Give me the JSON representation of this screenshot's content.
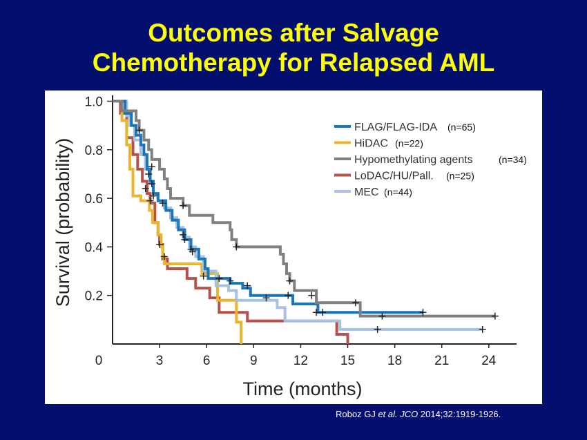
{
  "title_line1": "Outcomes after Salvage",
  "title_line2": "Chemotherapy for Relapsed AML",
  "citation": {
    "authors": "Roboz GJ",
    "etal": "et al.",
    "journal": "JCO",
    "rest": "2014;32:1919-1926."
  },
  "chart_data": {
    "type": "line",
    "subtype": "kaplan-meier step",
    "xlabel": "Time (months)",
    "ylabel": "Survival (probability)",
    "xlim": [
      0,
      25
    ],
    "ylim": [
      0,
      1.0
    ],
    "xticks": [
      "0",
      "3",
      "6",
      "9",
      "12",
      "15",
      "18",
      "21",
      "24"
    ],
    "xtick_values": [
      0,
      3,
      6,
      9,
      12,
      15,
      18,
      21,
      24
    ],
    "yticks": [
      "0.2",
      "0.4",
      "0.6",
      "0.8",
      "1.0"
    ],
    "ytick_values": [
      0.2,
      0.4,
      0.6,
      0.8,
      1.0
    ],
    "legend_position": "top-right",
    "series": [
      {
        "name": "FLAG/FLAG-IDA",
        "n": "(n=65)",
        "color": "#1b75b9",
        "points": [
          [
            0,
            1
          ],
          [
            0.8,
            0.95
          ],
          [
            1.2,
            0.9
          ],
          [
            1.5,
            0.86
          ],
          [
            1.8,
            0.82
          ],
          [
            2.0,
            0.78
          ],
          [
            2.2,
            0.72
          ],
          [
            2.4,
            0.67
          ],
          [
            2.6,
            0.62
          ],
          [
            2.9,
            0.59
          ],
          [
            3.4,
            0.55
          ],
          [
            3.8,
            0.51
          ],
          [
            4.2,
            0.47
          ],
          [
            4.6,
            0.43
          ],
          [
            5.0,
            0.39
          ],
          [
            5.5,
            0.35
          ],
          [
            5.9,
            0.31
          ],
          [
            6.1,
            0.27
          ],
          [
            7.5,
            0.25
          ],
          [
            8.3,
            0.23
          ],
          [
            8.8,
            0.2
          ],
          [
            11.5,
            0.165
          ],
          [
            13.1,
            0.13
          ],
          [
            19.8,
            0.13
          ]
        ],
        "censors": [
          [
            2.3,
            0.7
          ],
          [
            2.5,
            0.66
          ],
          [
            4.6,
            0.43
          ],
          [
            5.0,
            0.39
          ],
          [
            7.5,
            0.26
          ],
          [
            8.6,
            0.24
          ],
          [
            11.2,
            0.2
          ],
          [
            13.0,
            0.13
          ],
          [
            13.4,
            0.13
          ],
          [
            19.8,
            0.13
          ]
        ]
      },
      {
        "name": "HiDAC",
        "n": "(n=22)",
        "color": "#e9b52c",
        "points": [
          [
            0,
            1
          ],
          [
            0.6,
            0.92
          ],
          [
            0.9,
            0.82
          ],
          [
            1.1,
            0.72
          ],
          [
            1.3,
            0.61
          ],
          [
            1.8,
            0.59
          ],
          [
            2.35,
            0.55
          ],
          [
            2.55,
            0.5
          ],
          [
            2.9,
            0.45
          ],
          [
            3.1,
            0.4
          ],
          [
            3.2,
            0.36
          ],
          [
            3.3,
            0.33
          ],
          [
            5.7,
            0.29
          ],
          [
            6.7,
            0.18
          ],
          [
            7.9,
            0.09
          ],
          [
            8.2,
            0
          ],
          [
            8.2,
            0
          ]
        ],
        "censors": [
          [
            5.8,
            0.28
          ],
          [
            6.8,
            0.27
          ]
        ]
      },
      {
        "name": "Hypomethylating agents",
        "n": "(n=34)",
        "color": "#808080",
        "points": [
          [
            0,
            1
          ],
          [
            0.6,
            0.96
          ],
          [
            1.5,
            0.92
          ],
          [
            1.7,
            0.88
          ],
          [
            2.0,
            0.84
          ],
          [
            2.3,
            0.8
          ],
          [
            2.5,
            0.76
          ],
          [
            3.0,
            0.72
          ],
          [
            3.3,
            0.68
          ],
          [
            3.5,
            0.64
          ],
          [
            3.7,
            0.6
          ],
          [
            4.5,
            0.57
          ],
          [
            4.9,
            0.53
          ],
          [
            6.4,
            0.5
          ],
          [
            7.5,
            0.47
          ],
          [
            7.6,
            0.43
          ],
          [
            7.9,
            0.4
          ],
          [
            10.7,
            0.37
          ],
          [
            10.9,
            0.33
          ],
          [
            11.1,
            0.29
          ],
          [
            11.3,
            0.26
          ],
          [
            11.6,
            0.22
          ],
          [
            13.0,
            0.17
          ],
          [
            15.8,
            0.115
          ],
          [
            24.4,
            0.115
          ]
        ],
        "censors": [
          [
            1.7,
            0.88
          ],
          [
            2.5,
            0.73
          ],
          [
            4.5,
            0.57
          ],
          [
            7.9,
            0.4
          ],
          [
            11.3,
            0.26
          ],
          [
            12.7,
            0.2
          ],
          [
            15.5,
            0.17
          ],
          [
            17.2,
            0.115
          ],
          [
            24.4,
            0.115
          ]
        ]
      },
      {
        "name": "LoDAC/HU/Pall.",
        "n": "(n=25)",
        "color": "#b5524b",
        "points": [
          [
            0,
            1
          ],
          [
            0.5,
            0.95
          ],
          [
            0.9,
            0.85
          ],
          [
            1.3,
            0.78
          ],
          [
            1.6,
            0.72
          ],
          [
            1.9,
            0.67
          ],
          [
            2.2,
            0.62
          ],
          [
            2.4,
            0.58
          ],
          [
            2.7,
            0.5
          ],
          [
            2.9,
            0.45
          ],
          [
            3.0,
            0.41
          ],
          [
            3.2,
            0.35
          ],
          [
            3.5,
            0.31
          ],
          [
            4.75,
            0.27
          ],
          [
            5.3,
            0.23
          ],
          [
            6.2,
            0.19
          ],
          [
            6.8,
            0.13
          ],
          [
            8.6,
            0.095
          ],
          [
            14.3,
            0.04
          ],
          [
            15.0,
            0
          ],
          [
            15.0,
            0
          ]
        ],
        "censors": [
          [
            2.1,
            0.64
          ],
          [
            2.4,
            0.59
          ],
          [
            3.0,
            0.41
          ],
          [
            3.3,
            0.36
          ]
        ]
      },
      {
        "name": "MEC",
        "n": "(n=44)",
        "color": "#a7c2e1",
        "points": [
          [
            0,
            1
          ],
          [
            0.9,
            0.94
          ],
          [
            1.1,
            0.9
          ],
          [
            1.4,
            0.84
          ],
          [
            1.8,
            0.78
          ],
          [
            2.1,
            0.72
          ],
          [
            2.4,
            0.66
          ],
          [
            2.6,
            0.62
          ],
          [
            2.9,
            0.59
          ],
          [
            3.3,
            0.56
          ],
          [
            3.7,
            0.52
          ],
          [
            4.1,
            0.48
          ],
          [
            4.5,
            0.44
          ],
          [
            4.9,
            0.4
          ],
          [
            5.3,
            0.36
          ],
          [
            5.8,
            0.3
          ],
          [
            6.6,
            0.24
          ],
          [
            7.4,
            0.22
          ],
          [
            7.9,
            0.18
          ],
          [
            10.5,
            0.15
          ],
          [
            11.0,
            0.095
          ],
          [
            14.5,
            0.06
          ],
          [
            23.6,
            0.06
          ]
        ],
        "censors": [
          [
            2.6,
            0.61
          ],
          [
            3.2,
            0.58
          ],
          [
            4.5,
            0.45
          ],
          [
            5.1,
            0.38
          ],
          [
            9.8,
            0.19
          ],
          [
            16.9,
            0.06
          ],
          [
            23.6,
            0.06
          ]
        ]
      }
    ]
  }
}
